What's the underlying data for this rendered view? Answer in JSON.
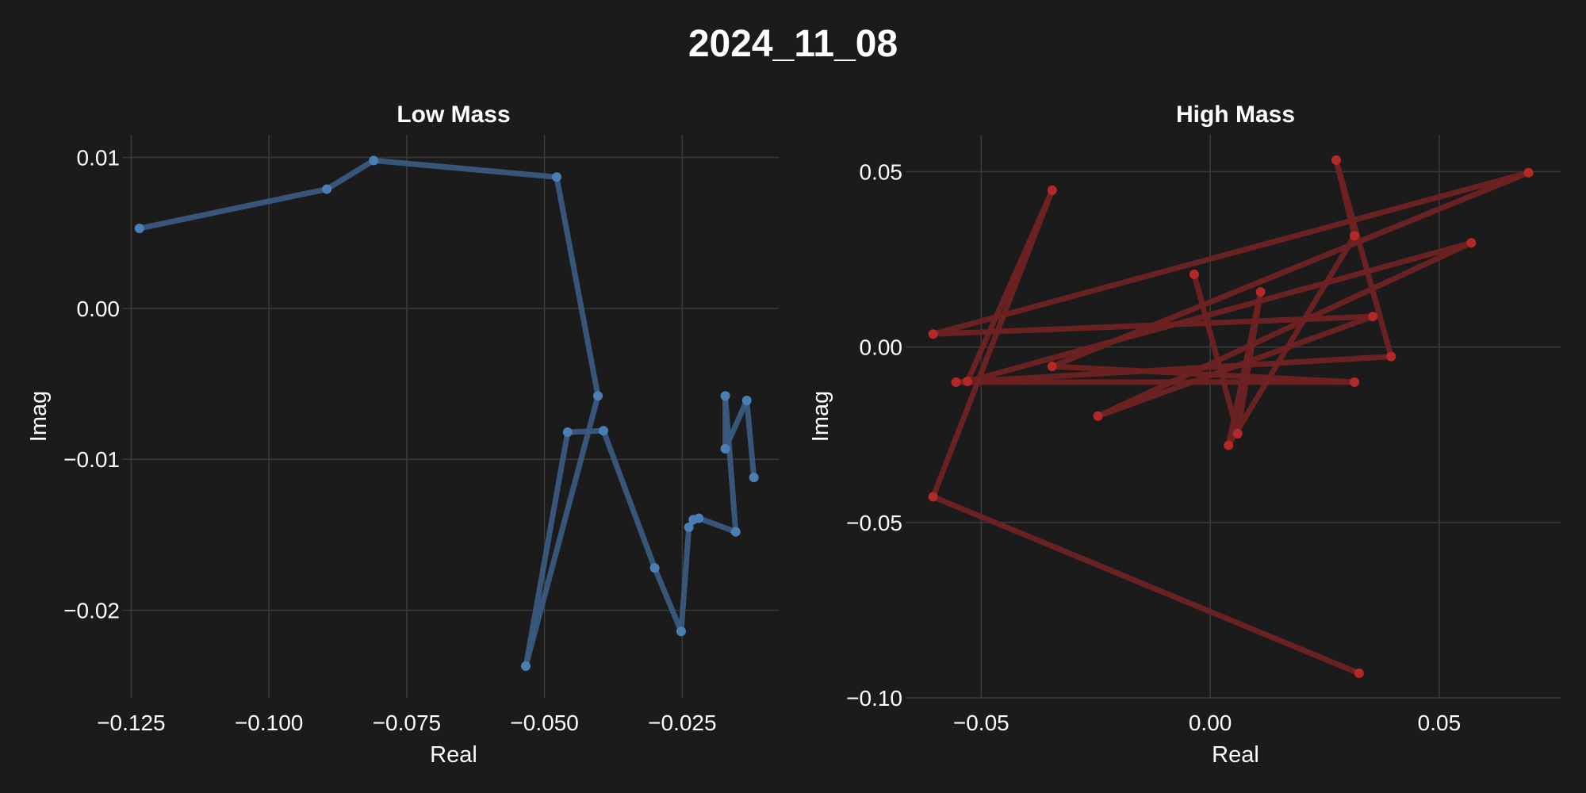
{
  "figure": {
    "title": "2024_11_08",
    "background": "#1b1b1b"
  },
  "chart_data": [
    {
      "type": "line",
      "title": "Low Mass",
      "xlabel": "Real",
      "ylabel": "Imag",
      "xlim": [
        -0.1265,
        -0.0075
      ],
      "ylim": [
        -0.0258,
        0.0115
      ],
      "xticks": [
        -0.125,
        -0.1,
        -0.075,
        -0.05,
        -0.025
      ],
      "xtick_labels": [
        "−0.125",
        "−0.100",
        "−0.075",
        "−0.050",
        "−0.025"
      ],
      "yticks": [
        0.01,
        0.0,
        -0.01,
        -0.02
      ],
      "ytick_labels": [
        "0.01",
        "0.00",
        "−0.01",
        "−0.02"
      ],
      "grid": true,
      "line_color": "#3a5a7f",
      "marker_color": "#4a7fb5",
      "points": [
        [
          -0.1235,
          0.0053
        ],
        [
          -0.0895,
          0.0079
        ],
        [
          -0.081,
          0.0098
        ],
        [
          -0.0478,
          0.0087
        ],
        [
          -0.0403,
          -0.0058
        ],
        [
          -0.0534,
          -0.0237
        ],
        [
          -0.0458,
          -0.0082
        ],
        [
          -0.0393,
          -0.0081
        ],
        [
          -0.03,
          -0.0172
        ],
        [
          -0.0252,
          -0.0214
        ],
        [
          -0.0238,
          -0.0145
        ],
        [
          -0.023,
          -0.014
        ],
        [
          -0.022,
          -0.0139
        ],
        [
          -0.0153,
          -0.0148
        ],
        [
          -0.0172,
          -0.0058
        ],
        [
          -0.0172,
          -0.0093
        ],
        [
          -0.0133,
          -0.0061
        ],
        [
          -0.012,
          -0.0112
        ]
      ]
    },
    {
      "type": "line",
      "title": "High Mass",
      "xlabel": "Real",
      "ylabel": "Imag",
      "xlim": [
        -0.0665,
        0.0765
      ],
      "ylim": [
        -0.1,
        0.0605
      ],
      "xticks": [
        -0.05,
        0.0,
        0.05
      ],
      "xtick_labels": [
        "−0.05",
        "0.00",
        "0.05"
      ],
      "yticks": [
        0.05,
        0.0,
        -0.05,
        -0.1
      ],
      "ytick_labels": [
        "0.05",
        "0.00",
        "−0.05",
        "−0.10"
      ],
      "grid": true,
      "line_color": "#6e2222",
      "marker_color": "#b52828",
      "points": [
        [
          0.0325,
          -0.093
        ],
        [
          -0.0605,
          -0.0427
        ],
        [
          -0.0345,
          0.0447
        ],
        [
          -0.053,
          -0.0098
        ],
        [
          0.057,
          0.0297
        ],
        [
          -0.0245,
          -0.0197
        ],
        [
          0.0355,
          0.0087
        ],
        [
          -0.0605,
          0.0037
        ],
        [
          0.0695,
          0.0497
        ],
        [
          -0.0345,
          -0.0055
        ],
        [
          0.0315,
          -0.01
        ],
        [
          -0.0555,
          -0.01
        ],
        [
          0.0395,
          -0.0027
        ],
        [
          0.0275,
          0.0533
        ],
        [
          0.0315,
          0.0317
        ],
        [
          0.004,
          -0.028
        ],
        [
          0.011,
          0.0157
        ],
        [
          0.006,
          -0.0247
        ],
        [
          -0.0035,
          0.0207
        ]
      ]
    }
  ]
}
